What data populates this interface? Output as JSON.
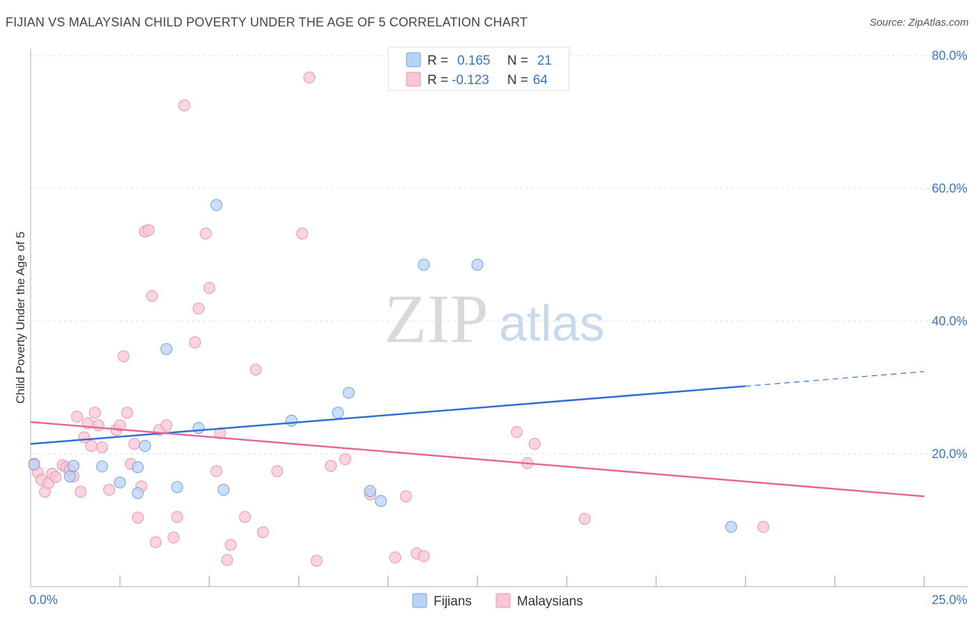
{
  "header": {
    "title": "FIJIAN VS MALAYSIAN CHILD POVERTY UNDER THE AGE OF 5 CORRELATION CHART",
    "source": "Source: ZipAtlas.com"
  },
  "watermark": {
    "zip": "ZIP",
    "atlas": "atlas"
  },
  "legend": {
    "rows": [
      {
        "r_label": "R =",
        "r_value": "0.165",
        "n_label": "N =",
        "n_value": "21"
      },
      {
        "r_label": "R =",
        "r_value": "-0.123",
        "n_label": "N =",
        "n_value": "64"
      }
    ]
  },
  "bottom_legend": [
    "Fijians",
    "Malaysians"
  ],
  "colors": {
    "fijian_fill": "#b9d3f5",
    "fijian_stroke": "#6fa0dc",
    "fijian_line": "#2f6fcf",
    "malaysian_fill": "#f9c6d6",
    "malaysian_stroke": "#e893ae",
    "malaysian_line": "#e5679a",
    "tick_text": "#3b73c4",
    "grid": "#dddddd"
  },
  "chart_data": {
    "type": "scatter",
    "title": "FIJIAN VS MALAYSIAN CHILD POVERTY UNDER THE AGE OF 5 CORRELATION CHART",
    "xlabel": "",
    "ylabel": "Child Poverty Under the Age of 5",
    "xlim": [
      0,
      25
    ],
    "ylim": [
      0,
      80
    ],
    "x_tick_labels": [
      "0.0%",
      "25.0%"
    ],
    "y_ticks": [
      20,
      40,
      60,
      80
    ],
    "y_tick_labels": [
      "20.0%",
      "40.0%",
      "60.0%",
      "80.0%"
    ],
    "grid": true,
    "legend": "top-center",
    "series": [
      {
        "name": "Fijians",
        "r": 0.165,
        "n": 21,
        "points": [
          [
            0.1,
            18.4
          ],
          [
            1.2,
            18.2
          ],
          [
            1.1,
            16.6
          ],
          [
            2.0,
            18.1
          ],
          [
            2.5,
            15.7
          ],
          [
            3.0,
            14.1
          ],
          [
            3.0,
            18.0
          ],
          [
            3.2,
            21.2
          ],
          [
            3.8,
            35.8
          ],
          [
            4.1,
            15.0
          ],
          [
            4.7,
            23.9
          ],
          [
            5.2,
            57.5
          ],
          [
            5.4,
            14.6
          ],
          [
            7.3,
            25.0
          ],
          [
            8.6,
            26.2
          ],
          [
            8.9,
            29.2
          ],
          [
            9.5,
            14.4
          ],
          [
            9.8,
            12.9
          ],
          [
            11.0,
            48.5
          ],
          [
            12.5,
            48.5
          ],
          [
            19.6,
            9.0
          ]
        ],
        "trend": {
          "x1": 0,
          "y1": 21.5,
          "x2": 20.0,
          "y2": 30.2,
          "dash_x2": 25.0,
          "dash_y2": 32.4
        }
      },
      {
        "name": "Malaysians",
        "r": -0.123,
        "n": 64,
        "points": [
          [
            0.1,
            18.5
          ],
          [
            0.2,
            17.2
          ],
          [
            0.3,
            16.1
          ],
          [
            0.4,
            14.3
          ],
          [
            0.5,
            15.6
          ],
          [
            0.6,
            17.0
          ],
          [
            0.7,
            16.5
          ],
          [
            0.9,
            18.3
          ],
          [
            1.0,
            18.0
          ],
          [
            1.1,
            17.6
          ],
          [
            1.2,
            16.6
          ],
          [
            1.3,
            25.6
          ],
          [
            1.4,
            14.3
          ],
          [
            1.5,
            22.5
          ],
          [
            1.6,
            24.6
          ],
          [
            1.7,
            21.2
          ],
          [
            1.8,
            26.2
          ],
          [
            1.9,
            24.3
          ],
          [
            2.0,
            21.0
          ],
          [
            2.2,
            14.6
          ],
          [
            2.4,
            23.6
          ],
          [
            2.5,
            24.3
          ],
          [
            2.6,
            34.7
          ],
          [
            2.7,
            26.2
          ],
          [
            2.8,
            18.5
          ],
          [
            2.9,
            21.5
          ],
          [
            3.0,
            10.4
          ],
          [
            3.1,
            15.1
          ],
          [
            3.2,
            53.5
          ],
          [
            3.3,
            53.7
          ],
          [
            3.4,
            43.8
          ],
          [
            3.5,
            6.7
          ],
          [
            3.6,
            23.6
          ],
          [
            3.8,
            24.3
          ],
          [
            4.0,
            7.4
          ],
          [
            4.1,
            10.5
          ],
          [
            4.3,
            72.5
          ],
          [
            4.6,
            36.8
          ],
          [
            4.7,
            41.9
          ],
          [
            4.9,
            53.2
          ],
          [
            5.0,
            45.0
          ],
          [
            5.2,
            17.4
          ],
          [
            5.3,
            23.1
          ],
          [
            5.5,
            4.0
          ],
          [
            5.6,
            6.3
          ],
          [
            6.0,
            10.5
          ],
          [
            6.3,
            32.7
          ],
          [
            6.5,
            8.2
          ],
          [
            6.9,
            17.4
          ],
          [
            7.6,
            53.2
          ],
          [
            7.8,
            76.7
          ],
          [
            8.0,
            3.9
          ],
          [
            8.4,
            18.2
          ],
          [
            8.8,
            19.2
          ],
          [
            9.5,
            13.9
          ],
          [
            10.2,
            4.4
          ],
          [
            10.5,
            13.6
          ],
          [
            10.8,
            5.0
          ],
          [
            11.0,
            4.6
          ],
          [
            13.6,
            23.3
          ],
          [
            13.9,
            18.6
          ],
          [
            14.1,
            21.5
          ],
          [
            15.5,
            10.2
          ],
          [
            20.5,
            9.0
          ]
        ],
        "trend": {
          "x1": 0,
          "y1": 24.8,
          "x2": 25.0,
          "y2": 13.6
        }
      }
    ]
  }
}
